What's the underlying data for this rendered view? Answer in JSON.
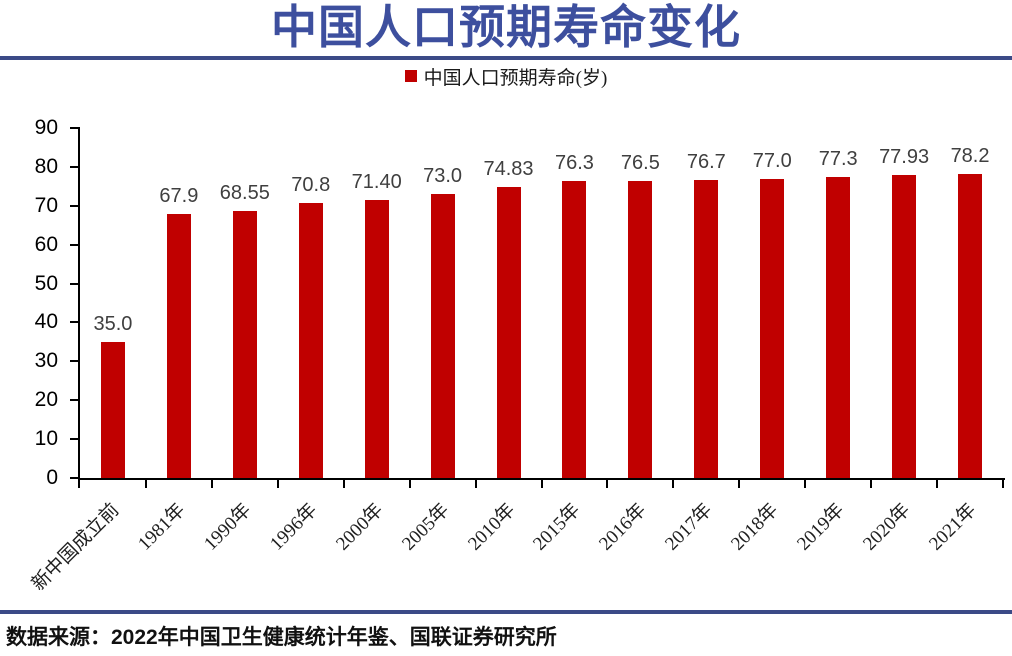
{
  "header": {
    "title": "中国人口预期寿命变化"
  },
  "legend": {
    "label": "中国人口预期寿命(岁)",
    "marker_color": "#C00000"
  },
  "footer": {
    "source": "数据来源：2022年中国卫生健康统计年鉴、国联证券研究所"
  },
  "colors": {
    "bar": "#C00000",
    "title_blue": "#3D4F9E",
    "rule_blue": "#3B4A87",
    "axis_black": "#000000",
    "value_label_gray": "#3f3f3f"
  },
  "chart_data": {
    "type": "bar",
    "title": "中国人口预期寿命变化",
    "legend": [
      "中国人口预期寿命(岁)"
    ],
    "legend_position": "top",
    "grid": false,
    "categories": [
      "新中国成立前",
      "1981年",
      "1990年",
      "1996年",
      "2000年",
      "2005年",
      "2010年",
      "2015年",
      "2016年",
      "2017年",
      "2018年",
      "2019年",
      "2020年",
      "2021年"
    ],
    "values": [
      35.0,
      67.9,
      68.55,
      70.8,
      71.4,
      73.0,
      74.83,
      76.3,
      76.5,
      76.7,
      77.0,
      77.3,
      77.93,
      78.2
    ],
    "value_labels": [
      "35.0",
      "67.9",
      "68.55",
      "70.8",
      "71.40",
      "73.0",
      "74.83",
      "76.3",
      "76.5",
      "76.7",
      "77.0",
      "77.3",
      "77.93",
      "78.2"
    ],
    "xlabel": "",
    "ylabel": "",
    "ylim": [
      0,
      90
    ],
    "y_ticks": [
      0,
      10,
      20,
      30,
      40,
      50,
      60,
      70,
      80,
      90
    ],
    "bar_color": "#C00000"
  }
}
